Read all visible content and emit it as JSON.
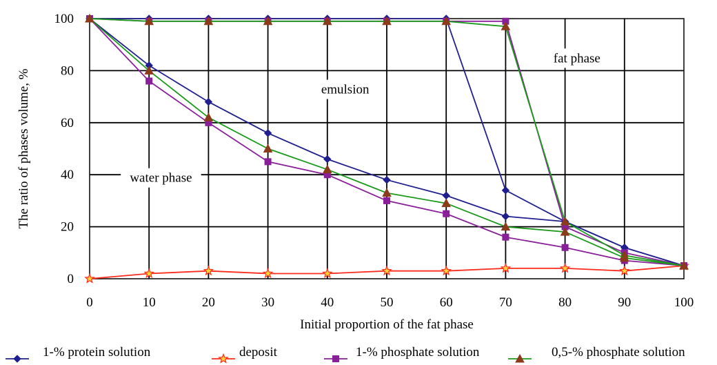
{
  "chart_data": {
    "type": "line",
    "title": "",
    "xlabel": "Initial proportion of the fat phase",
    "ylabel": "The ratio of phases volume, %",
    "xlim": [
      0,
      100
    ],
    "ylim": [
      0,
      100
    ],
    "grid": true,
    "legend_position": "bottom",
    "x": [
      0,
      10,
      20,
      30,
      40,
      50,
      60,
      70,
      80,
      90,
      100
    ],
    "x_ticks": [
      "0",
      "10",
      "20",
      "30",
      "40",
      "50",
      "60",
      "70",
      "80",
      "90",
      "100"
    ],
    "y_ticks": [
      "0",
      "20",
      "40",
      "60",
      "80",
      "100"
    ],
    "annotations": [
      {
        "id": "emulsion",
        "text": "emulsion",
        "x": 43,
        "y": 72
      },
      {
        "id": "fat",
        "text": "fat phase",
        "x": 82,
        "y": 84
      },
      {
        "id": "water",
        "text": "water phase",
        "x": 12,
        "y": 38
      }
    ],
    "series": [
      {
        "name": "1-% protein solution",
        "color": "#1f1f8f",
        "marker": "diamond",
        "lower": [
          100,
          82,
          68,
          56,
          46,
          38,
          32,
          24,
          22,
          12,
          5
        ],
        "upper": [
          100,
          100,
          100,
          100,
          100,
          100,
          100,
          34,
          22,
          12,
          5
        ]
      },
      {
        "name": "deposit",
        "color": "#ff2a1a",
        "marker": "star",
        "lower": [
          0,
          2,
          3,
          2,
          2,
          3,
          3,
          4,
          4,
          3,
          5
        ],
        "upper": null
      },
      {
        "name": "1-% phosphate solution",
        "color": "#8a1f9a",
        "marker": "square",
        "lower": [
          100,
          76,
          60,
          45,
          40,
          30,
          25,
          16,
          12,
          7,
          5
        ],
        "upper": [
          100,
          99,
          99,
          99,
          99,
          99,
          99,
          99,
          20,
          10,
          5
        ]
      },
      {
        "name": "0,5-% phosphate solution",
        "color": "#1a9a1a",
        "marker": "triangle",
        "lower": [
          100,
          80,
          62,
          50,
          42,
          33,
          29,
          20,
          18,
          8,
          5
        ],
        "upper": [
          100,
          99,
          99,
          99,
          99,
          99,
          99,
          97,
          22,
          9,
          5
        ]
      }
    ]
  }
}
